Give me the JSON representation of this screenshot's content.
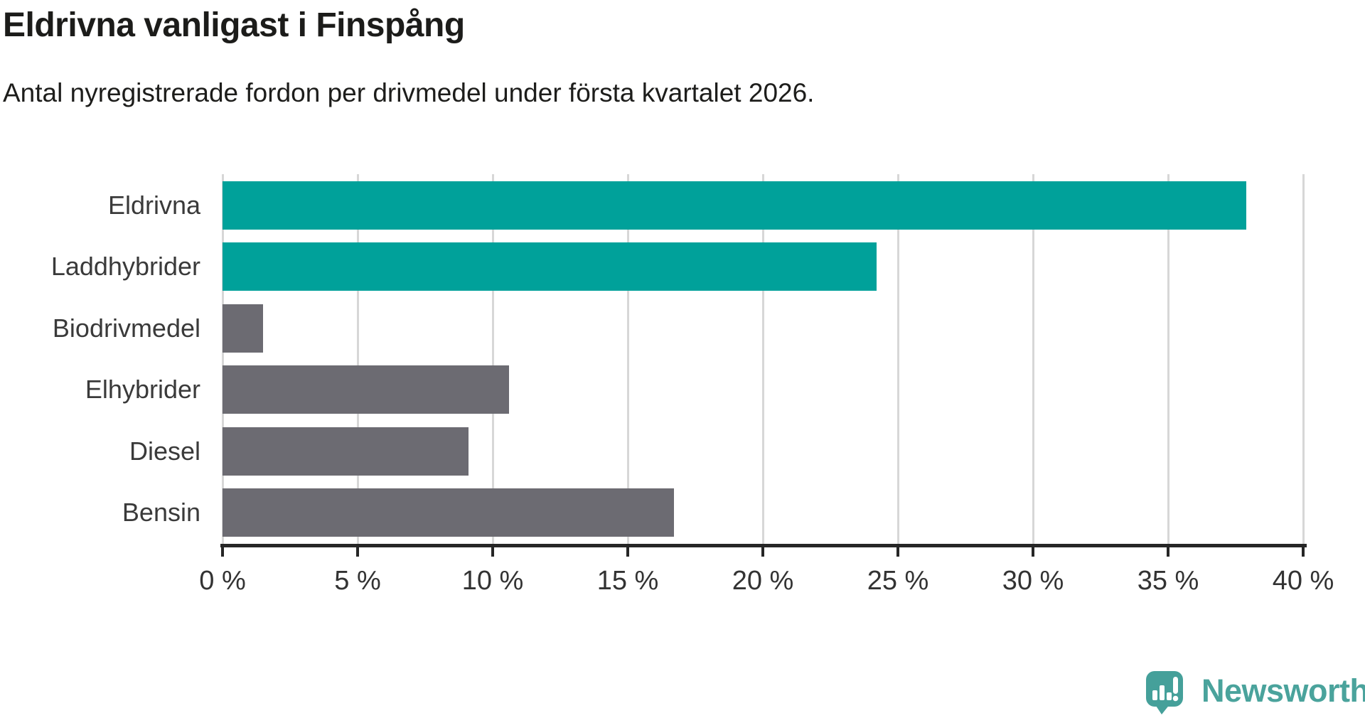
{
  "title": "Eldrivna vanligast i Finspång",
  "subtitle": "Antal nyregistrerade fordon per drivmedel under första kvartalet 2026.",
  "chart_data": {
    "type": "bar",
    "orientation": "horizontal",
    "title": "Eldrivna vanligast i Finspång",
    "subtitle": "Antal nyregistrerade fordon per drivmedel under första kvartalet 2026.",
    "categories": [
      "Eldrivna",
      "Laddhybrider",
      "Biodrivmedel",
      "Elhybrider",
      "Diesel",
      "Bensin"
    ],
    "values": [
      37.9,
      24.2,
      1.5,
      10.6,
      9.1,
      16.7
    ],
    "unit": "%",
    "bar_colors": [
      "#00a19a",
      "#00a19a",
      "#6c6b72",
      "#6c6b72",
      "#6c6b72",
      "#6c6b72"
    ],
    "highlight_color": "#00a19a",
    "default_color": "#6c6b72",
    "xlim": [
      0,
      40
    ],
    "x_ticks": [
      0,
      5,
      10,
      15,
      20,
      25,
      30,
      35,
      40
    ],
    "x_tick_labels": [
      "0 %",
      "5 %",
      "10 %",
      "15 %",
      "20 %",
      "25 %",
      "30 %",
      "35 %",
      "40 %"
    ],
    "grid": true,
    "gridline_color": "#d7d7d7",
    "axis_color": "#262626",
    "legend_position": "none"
  },
  "logo": {
    "text": "Newsworthy",
    "icon_name": "newsworthy-logo-icon",
    "color": "#4aa39c"
  }
}
